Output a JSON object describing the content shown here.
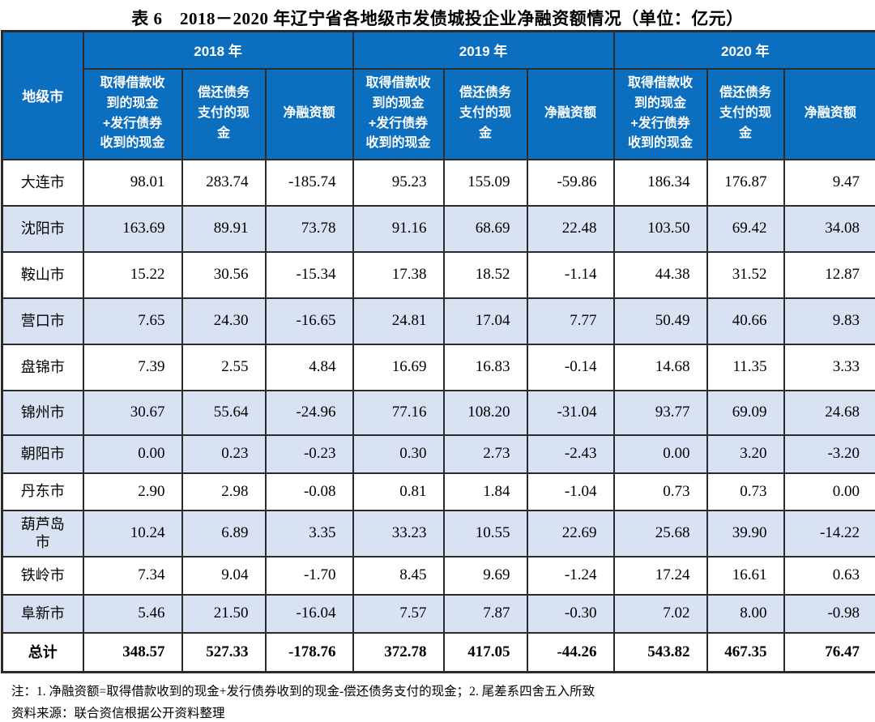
{
  "title": "表 6　2018－2020 年辽宁省各地级市发债城投企业净融资额情况（单位：亿元）",
  "table": {
    "corner_header": "地级市",
    "year_groups": [
      {
        "year": "2018 年",
        "subcols": [
          "取得借款收到的现金+发行债券收到的现金",
          "偿还债务支付的现金",
          "净融资额"
        ]
      },
      {
        "year": "2019 年",
        "subcols": [
          "取得借款收到的现金+发行债券收到的现金",
          "偿还债务支付的现金",
          "净融资额"
        ]
      },
      {
        "year": "2020 年",
        "subcols": [
          "取得借款收到的现金+发行债券收到的现金",
          "偿还债务支付的现金",
          "净融资额"
        ]
      }
    ],
    "rows": [
      {
        "city": "大连市",
        "values": [
          "98.01",
          "283.74",
          "-185.74",
          "95.23",
          "155.09",
          "-59.86",
          "186.34",
          "176.87",
          "9.47"
        ],
        "shaded": false,
        "bold": false
      },
      {
        "city": "沈阳市",
        "values": [
          "163.69",
          "89.91",
          "73.78",
          "91.16",
          "68.69",
          "22.48",
          "103.50",
          "69.42",
          "34.08"
        ],
        "shaded": true,
        "bold": false
      },
      {
        "city": "鞍山市",
        "values": [
          "15.22",
          "30.56",
          "-15.34",
          "17.38",
          "18.52",
          "-1.14",
          "44.38",
          "31.52",
          "12.87"
        ],
        "shaded": false,
        "bold": false
      },
      {
        "city": "营口市",
        "values": [
          "7.65",
          "24.30",
          "-16.65",
          "24.81",
          "17.04",
          "7.77",
          "50.49",
          "40.66",
          "9.83"
        ],
        "shaded": true,
        "bold": false
      },
      {
        "city": "盘锦市",
        "values": [
          "7.39",
          "2.55",
          "4.84",
          "16.69",
          "16.83",
          "-0.14",
          "14.68",
          "11.35",
          "3.33"
        ],
        "shaded": false,
        "bold": false
      },
      {
        "city": "锦州市",
        "values": [
          "30.67",
          "55.64",
          "-24.96",
          "77.16",
          "108.20",
          "-31.04",
          "93.77",
          "69.09",
          "24.68"
        ],
        "shaded": true,
        "bold": false
      },
      {
        "city": "朝阳市",
        "values": [
          "0.00",
          "0.23",
          "-0.23",
          "0.30",
          "2.73",
          "-2.43",
          "0.00",
          "3.20",
          "-3.20"
        ],
        "shaded": true,
        "bold": false
      },
      {
        "city": "丹东市",
        "values": [
          "2.90",
          "2.98",
          "-0.08",
          "0.81",
          "1.84",
          "-1.04",
          "0.73",
          "0.73",
          "0.00"
        ],
        "shaded": false,
        "bold": false
      },
      {
        "city": "葫芦岛市",
        "values": [
          "10.24",
          "6.89",
          "3.35",
          "33.23",
          "10.55",
          "22.69",
          "25.68",
          "39.90",
          "-14.22"
        ],
        "shaded": true,
        "bold": false
      },
      {
        "city": "铁岭市",
        "values": [
          "7.34",
          "9.04",
          "-1.70",
          "8.45",
          "9.69",
          "-1.24",
          "17.24",
          "16.61",
          "0.63"
        ],
        "shaded": false,
        "bold": false
      },
      {
        "city": "阜新市",
        "values": [
          "5.46",
          "21.50",
          "-16.04",
          "7.57",
          "7.87",
          "-0.30",
          "7.02",
          "8.00",
          "-0.98"
        ],
        "shaded": true,
        "bold": false
      },
      {
        "city": "总计",
        "values": [
          "348.57",
          "527.33",
          "-178.76",
          "372.78",
          "417.05",
          "-44.26",
          "543.82",
          "467.35",
          "76.47"
        ],
        "shaded": false,
        "bold": true
      }
    ]
  },
  "notes": {
    "note1": "注：1. 净融资额=取得借款收到的现金+发行债券收到的现金-偿还债务支付的现金；2. 尾差系四舍五入所致",
    "source": "资料来源：联合资信根据公开资料整理"
  },
  "colors": {
    "header_bg": "#0C6EBE",
    "header_text": "#FFFFFF",
    "row_shaded_bg": "#D9E2F3",
    "border": "#2B2B2B"
  }
}
